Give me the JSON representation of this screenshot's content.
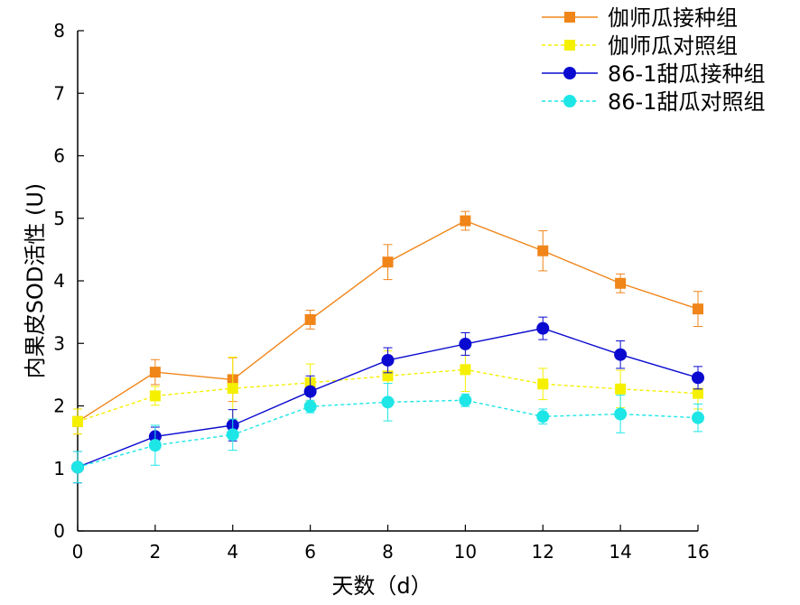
{
  "chart_data": {
    "type": "line",
    "xlabel": "天数（d）",
    "ylabel": "内果皮SOD活性 (U)",
    "xlim": [
      0,
      16
    ],
    "ylim": [
      0,
      8
    ],
    "x_ticks": [
      0,
      2,
      4,
      6,
      8,
      10,
      12,
      14,
      16
    ],
    "y_ticks": [
      0,
      1,
      2,
      3,
      4,
      5,
      6,
      7,
      8
    ],
    "grid": false,
    "legend_position": "top-right",
    "x": [
      0,
      2,
      4,
      6,
      8,
      10,
      12,
      14,
      16
    ],
    "series": [
      {
        "name": "伽师瓜接种组",
        "color": "#f08519",
        "marker": "square",
        "line_style": "solid",
        "values": [
          1.75,
          2.54,
          2.42,
          3.38,
          4.3,
          4.96,
          4.48,
          3.96,
          3.55
        ],
        "errors": [
          0.2,
          0.2,
          0.35,
          0.15,
          0.28,
          0.15,
          0.32,
          0.15,
          0.28
        ]
      },
      {
        "name": "伽师瓜对照组",
        "color": "#f5f000",
        "marker": "square",
        "line_style": "dashed",
        "values": [
          1.75,
          2.16,
          2.28,
          2.37,
          2.48,
          2.58,
          2.35,
          2.27,
          2.2
        ],
        "errors": [
          0.2,
          0.15,
          0.5,
          0.3,
          0.4,
          0.35,
          0.25,
          0.3,
          0.25
        ]
      },
      {
        "name": "86-1甜瓜接种组",
        "color": "#0a0ad0",
        "marker": "circle",
        "line_style": "solid",
        "values": [
          1.02,
          1.51,
          1.69,
          2.23,
          2.73,
          2.99,
          3.24,
          2.82,
          2.45
        ],
        "errors": [
          0.25,
          0.15,
          0.25,
          0.25,
          0.2,
          0.18,
          0.18,
          0.22,
          0.18
        ]
      },
      {
        "name": "86-1甜瓜对照组",
        "color": "#1ee6e6",
        "marker": "circle",
        "line_style": "dashed",
        "values": [
          1.02,
          1.37,
          1.54,
          1.99,
          2.06,
          2.09,
          1.83,
          1.87,
          1.81
        ],
        "errors": [
          0.25,
          0.32,
          0.25,
          0.1,
          0.3,
          0.1,
          0.12,
          0.3,
          0.22
        ]
      }
    ]
  }
}
